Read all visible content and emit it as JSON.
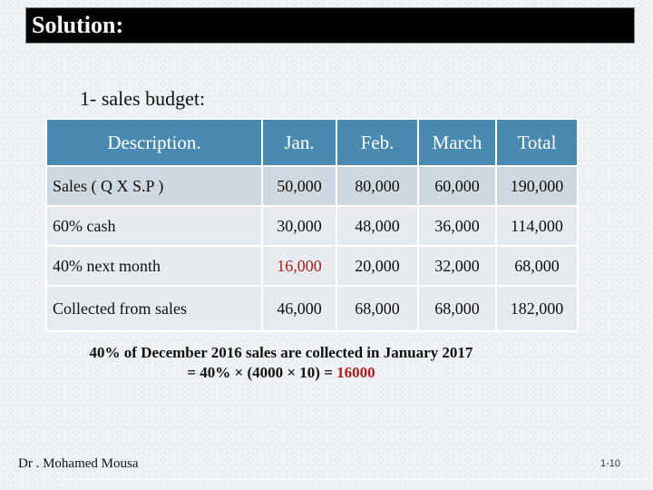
{
  "title": "Solution:",
  "subtitle": "1- sales budget:",
  "table": {
    "headers": [
      "Description.",
      "Jan.",
      "Feb.",
      "March",
      "Total"
    ],
    "rows": [
      [
        "Sales ( Q X S.P )",
        "50,000",
        "80,000",
        "60,000",
        "190,000"
      ],
      [
        "60% cash",
        "30,000",
        "48,000",
        "36,000",
        "114,000"
      ],
      [
        "40% next month",
        "16,000",
        "20,000",
        "32,000",
        "68,000"
      ],
      [
        "Collected from sales",
        "46,000",
        "68,000",
        "68,000",
        "182,000"
      ]
    ]
  },
  "note": {
    "line1": "40% of December 2016 sales are collected in January 2017",
    "line2_prefix": "= 40% × (4000 × 10) = ",
    "line2_value": "16000"
  },
  "footer": {
    "author": "Dr . Mohamed Mousa",
    "page": "1-10"
  },
  "colors": {
    "header_bg": "#4a8ab0",
    "row_dark": "#ced8e0",
    "row_light": "#e6ebef",
    "highlight_red": "#b21a1a"
  }
}
